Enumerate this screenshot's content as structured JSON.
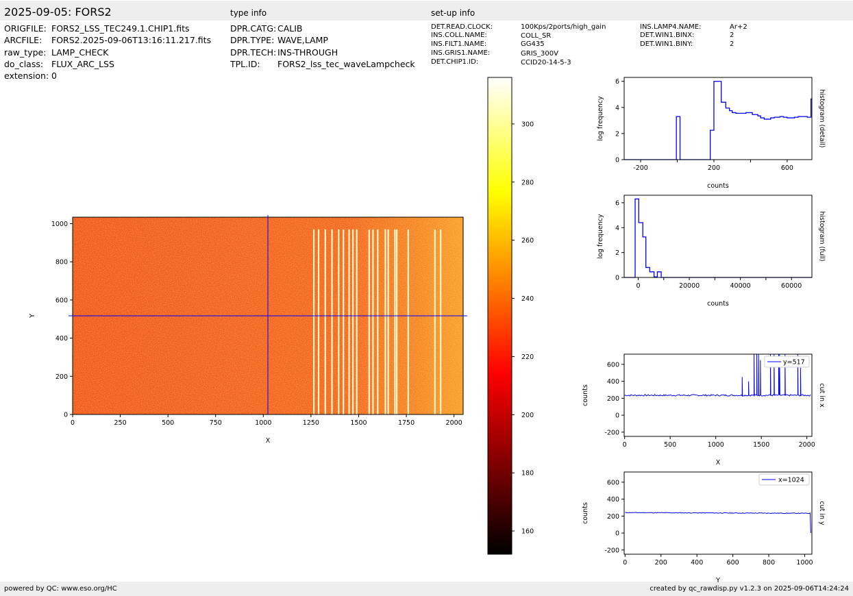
{
  "header": {
    "title": "2025-09-05: FORS2",
    "type_info_label": "type info",
    "setup_info_label": "set-up info"
  },
  "file_info": [
    {
      "key": "ORIGFILE:",
      "value": "FORS2_LSS_TEC249.1.CHIP1.fits"
    },
    {
      "key": "ARCFILE:",
      "value": "FORS2.2025-09-06T13:16:11.217.fits"
    },
    {
      "key": "raw_type:",
      "value": "LAMP_CHECK"
    },
    {
      "key": "do_class:",
      "value": "FLUX_ARC_LSS"
    },
    {
      "key": "extension:",
      "value": "0"
    }
  ],
  "type_info": [
    {
      "key": "DPR.CATG:",
      "value": "CALIB"
    },
    {
      "key": "DPR.TYPE:",
      "value": "WAVE,LAMP"
    },
    {
      "key": "DPR.TECH:",
      "value": "INS-THROUGH"
    },
    {
      "key": "TPL.ID:",
      "value": "FORS2_lss_tec_waveLampcheck"
    }
  ],
  "setup_info_col1": [
    {
      "key": "DET.READ.CLOCK:",
      "value": "100Kps/2ports/high_gain"
    },
    {
      "key": "INS.COLL.NAME:",
      "value": "COLL_SR"
    },
    {
      "key": "INS.FILT1.NAME:",
      "value": "GG435"
    },
    {
      "key": "INS.GRIS1.NAME:",
      "value": "GRIS_300V"
    },
    {
      "key": "DET.CHIP1.ID:",
      "value": "CCID20-14-5-3"
    }
  ],
  "setup_info_col2": [
    {
      "key": "INS.LAMP4.NAME:",
      "value": "Ar+2"
    },
    {
      "key": "DET.WIN1.BINX:",
      "value": "2"
    },
    {
      "key": "DET.WIN1.BINY:",
      "value": "2"
    }
  ],
  "footer": {
    "left": "powered by QC: www.eso.org/HC",
    "right": "created by qc_rawdisp.py v1.2.3 on 2025-09-06T14:24:24"
  },
  "colors": {
    "line": "#0000ff",
    "bar_bg": "#eeeeee",
    "cmap": [
      "#000000",
      "#ff0000",
      "#ffff00",
      "#ffffff"
    ]
  },
  "chart_data": [
    {
      "type": "heatmap",
      "xlabel": "X",
      "ylabel": "Y",
      "xlim": [
        0,
        2048
      ],
      "ylim": [
        0,
        1034
      ],
      "xticks": [
        0,
        250,
        500,
        750,
        1000,
        1250,
        1500,
        1750,
        2000
      ],
      "yticks": [
        0,
        200,
        400,
        600,
        800,
        1000
      ],
      "crosshair": {
        "x": 1024,
        "y": 517
      },
      "background_level": 235,
      "emission_line_x": [
        1265,
        1290,
        1325,
        1360,
        1395,
        1420,
        1450,
        1470,
        1490,
        1555,
        1575,
        1600,
        1640,
        1655,
        1690,
        1700,
        1760,
        1900,
        1930
      ],
      "colorbar": {
        "vmin": 152,
        "vmax": 316,
        "ticks": [
          160,
          180,
          200,
          220,
          240,
          260,
          280,
          300
        ]
      }
    },
    {
      "type": "bar",
      "name": "histogram-detail",
      "right_label": "histogram (detail)",
      "xlabel": "counts",
      "ylabel": "log frequency",
      "xlim": [
        -290,
        735
      ],
      "ylim": [
        0,
        6.3
      ],
      "xticks": [
        -200,
        200,
        600
      ],
      "yticks": [
        0,
        2,
        4,
        6
      ],
      "steps": [
        [
          -290,
          0
        ],
        [
          -5,
          3.3
        ],
        [
          15,
          0
        ],
        [
          180,
          2.25
        ],
        [
          200,
          6.0
        ],
        [
          240,
          4.4
        ],
        [
          265,
          3.95
        ],
        [
          285,
          3.75
        ],
        [
          300,
          3.6
        ],
        [
          320,
          3.55
        ],
        [
          350,
          3.55
        ],
        [
          375,
          3.6
        ],
        [
          410,
          3.45
        ],
        [
          440,
          3.35
        ],
        [
          455,
          3.2
        ],
        [
          475,
          3.1
        ],
        [
          510,
          3.2
        ],
        [
          530,
          3.25
        ],
        [
          560,
          3.3
        ],
        [
          580,
          3.25
        ],
        [
          600,
          3.2
        ],
        [
          640,
          3.25
        ],
        [
          660,
          3.3
        ],
        [
          710,
          3.25
        ],
        [
          730,
          4.65
        ]
      ]
    },
    {
      "type": "bar",
      "name": "histogram-full",
      "right_label": "histogram (full)",
      "xlabel": "counts",
      "ylabel": "log frequency",
      "xlim": [
        -5500,
        68000
      ],
      "ylim": [
        0,
        6.6
      ],
      "xticks": [
        0,
        20000,
        40000,
        60000
      ],
      "yticks": [
        0,
        2,
        4,
        6
      ],
      "steps": [
        [
          -5500,
          0
        ],
        [
          -1200,
          6.3
        ],
        [
          200,
          4.4
        ],
        [
          1800,
          3.25
        ],
        [
          3000,
          0.8
        ],
        [
          4500,
          0.45
        ],
        [
          6200,
          0.05
        ],
        [
          7500,
          0.45
        ],
        [
          9000,
          0
        ],
        [
          68000,
          0
        ]
      ]
    },
    {
      "type": "line",
      "name": "cut-in-x",
      "right_label": "cut in x",
      "legend": "y=517",
      "xlabel": "X",
      "ylabel": "counts",
      "xlim": [
        -5,
        2055
      ],
      "ylim": [
        -250,
        720
      ],
      "xticks": [
        0,
        500,
        1000,
        1500,
        2000
      ],
      "yticks": [
        -200,
        0,
        200,
        400,
        600
      ],
      "baseline": 235,
      "peaks": [
        [
          1265,
          720
        ],
        [
          1290,
          450
        ],
        [
          1325,
          280
        ],
        [
          1360,
          400
        ],
        [
          1395,
          680
        ],
        [
          1420,
          720
        ],
        [
          1450,
          720
        ],
        [
          1470,
          720
        ],
        [
          1490,
          650
        ],
        [
          1555,
          720
        ],
        [
          1575,
          720
        ],
        [
          1600,
          720
        ],
        [
          1640,
          720
        ],
        [
          1655,
          720
        ],
        [
          1690,
          720
        ],
        [
          1700,
          720
        ],
        [
          1760,
          720
        ],
        [
          1900,
          720
        ],
        [
          1930,
          560
        ]
      ]
    },
    {
      "type": "line",
      "name": "cut-in-y",
      "right_label": "cut in y",
      "legend": "x=1024",
      "xlabel": "Y",
      "ylabel": "counts",
      "xlim": [
        -5,
        1040
      ],
      "ylim": [
        -250,
        720
      ],
      "xticks": [
        0,
        200,
        400,
        600,
        800,
        1000
      ],
      "yticks": [
        -200,
        0,
        200,
        400,
        600
      ],
      "baseline": 233,
      "end_drop": 0
    }
  ]
}
